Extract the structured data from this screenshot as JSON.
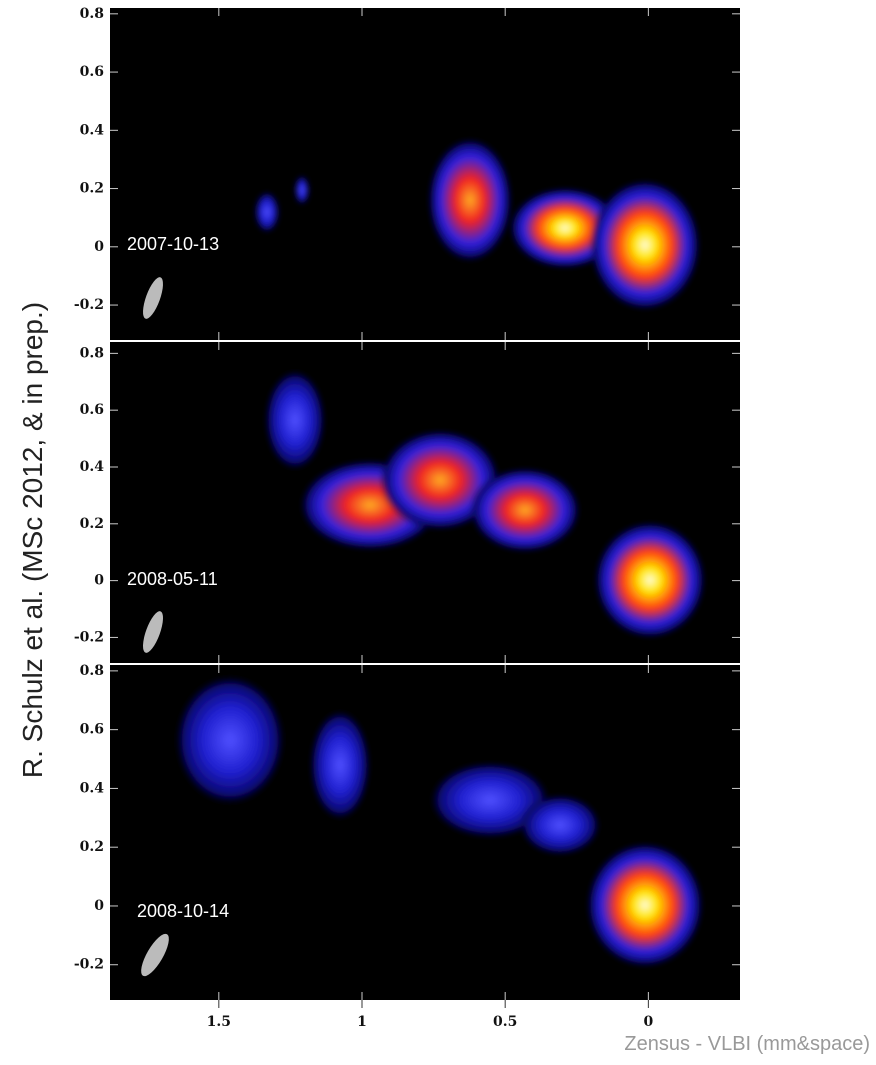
{
  "ylabel": "R. Schulz et al. (MSc 2012, & in prep.)",
  "credit": "Zensus - VLBI (mm&space)",
  "xaxis": {
    "xlim": [
      1.88,
      -0.32
    ],
    "xticks": [
      1.5,
      1,
      0.5,
      0
    ]
  },
  "panels": [
    {
      "label": "2007-10-13",
      "ylim": [
        -0.32,
        0.82
      ],
      "yticks": [
        0.8,
        0.6,
        0.4,
        0.2,
        0,
        -0.2
      ]
    },
    {
      "label": "2008-05-11",
      "ylim": [
        -0.29,
        0.84
      ],
      "yticks": [
        0.8,
        0.6,
        0.4,
        0.2,
        0,
        -0.2
      ]
    },
    {
      "label": "2008-10-14",
      "ylim": [
        -0.32,
        0.82
      ],
      "yticks": [
        0.8,
        0.6,
        0.4,
        0.2,
        0,
        -0.2
      ]
    }
  ]
}
